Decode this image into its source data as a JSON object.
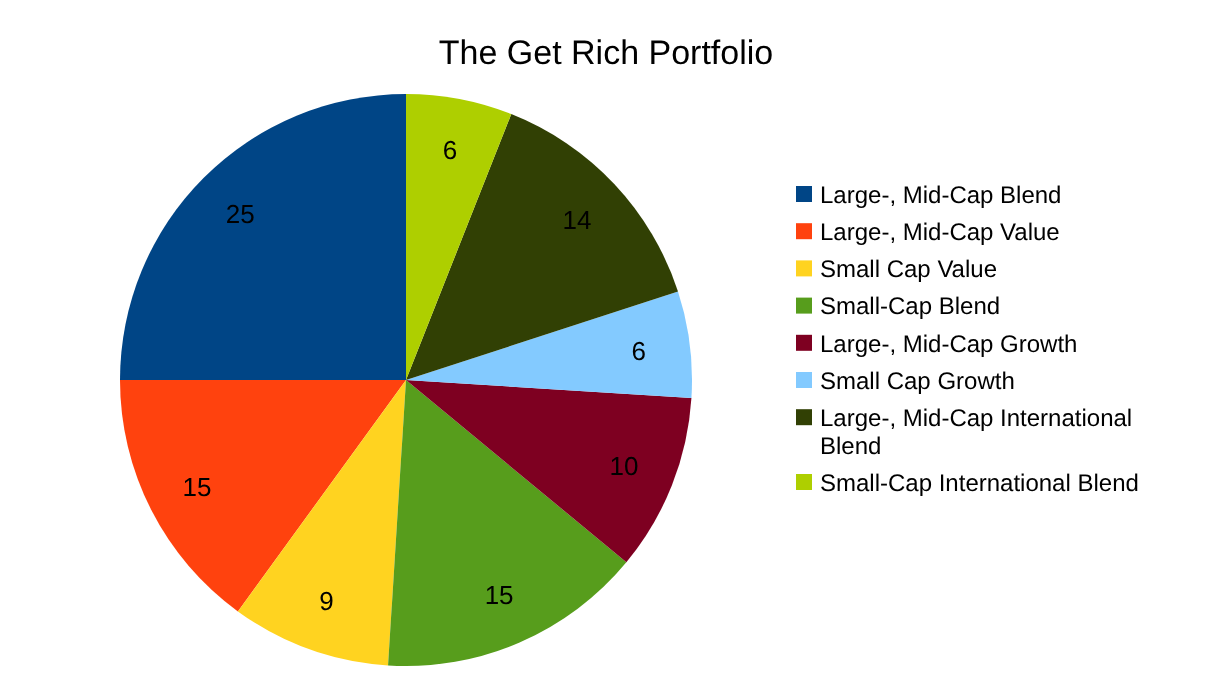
{
  "chart_data": {
    "type": "pie",
    "title": "The Get Rich Portfolio",
    "categories": [
      "Large-, Mid-Cap Blend",
      "Large-, Mid-Cap Value",
      "Small Cap Value",
      "Small-Cap Blend",
      "Large-, Mid-Cap Growth",
      "Small Cap Growth",
      "Large-, Mid-Cap International Blend",
      "Small-Cap International Blend"
    ],
    "values": [
      25,
      15,
      9,
      15,
      10,
      6,
      14,
      6
    ],
    "colors": [
      "#004586",
      "#ff420e",
      "#ffd320",
      "#579d1c",
      "#7e0021",
      "#83caff",
      "#314004",
      "#aecf00"
    ],
    "data_labels": true,
    "legend": "right"
  }
}
